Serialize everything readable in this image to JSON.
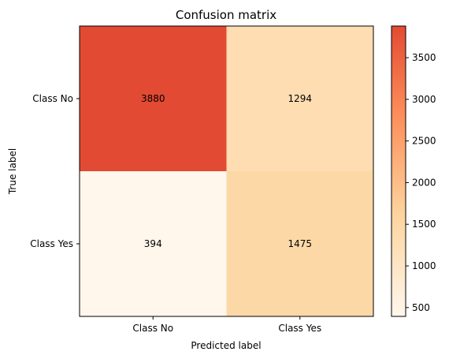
{
  "chart_data": {
    "type": "heatmap",
    "title": "Confusion matrix",
    "xlabel": "Predicted label",
    "ylabel": "True label",
    "x_categories": [
      "Class No",
      "Class Yes"
    ],
    "y_categories": [
      "Class No",
      "Class Yes"
    ],
    "values": [
      [
        3880,
        1294
      ],
      [
        394,
        1475
      ]
    ],
    "colorbar": {
      "range": [
        394,
        3880
      ],
      "ticks": [
        500,
        1000,
        1500,
        2000,
        2500,
        3000,
        3500
      ],
      "colormap": "OrRd",
      "color_low": "#fff7ec",
      "color_high": "#e34a33"
    },
    "grid": false
  }
}
